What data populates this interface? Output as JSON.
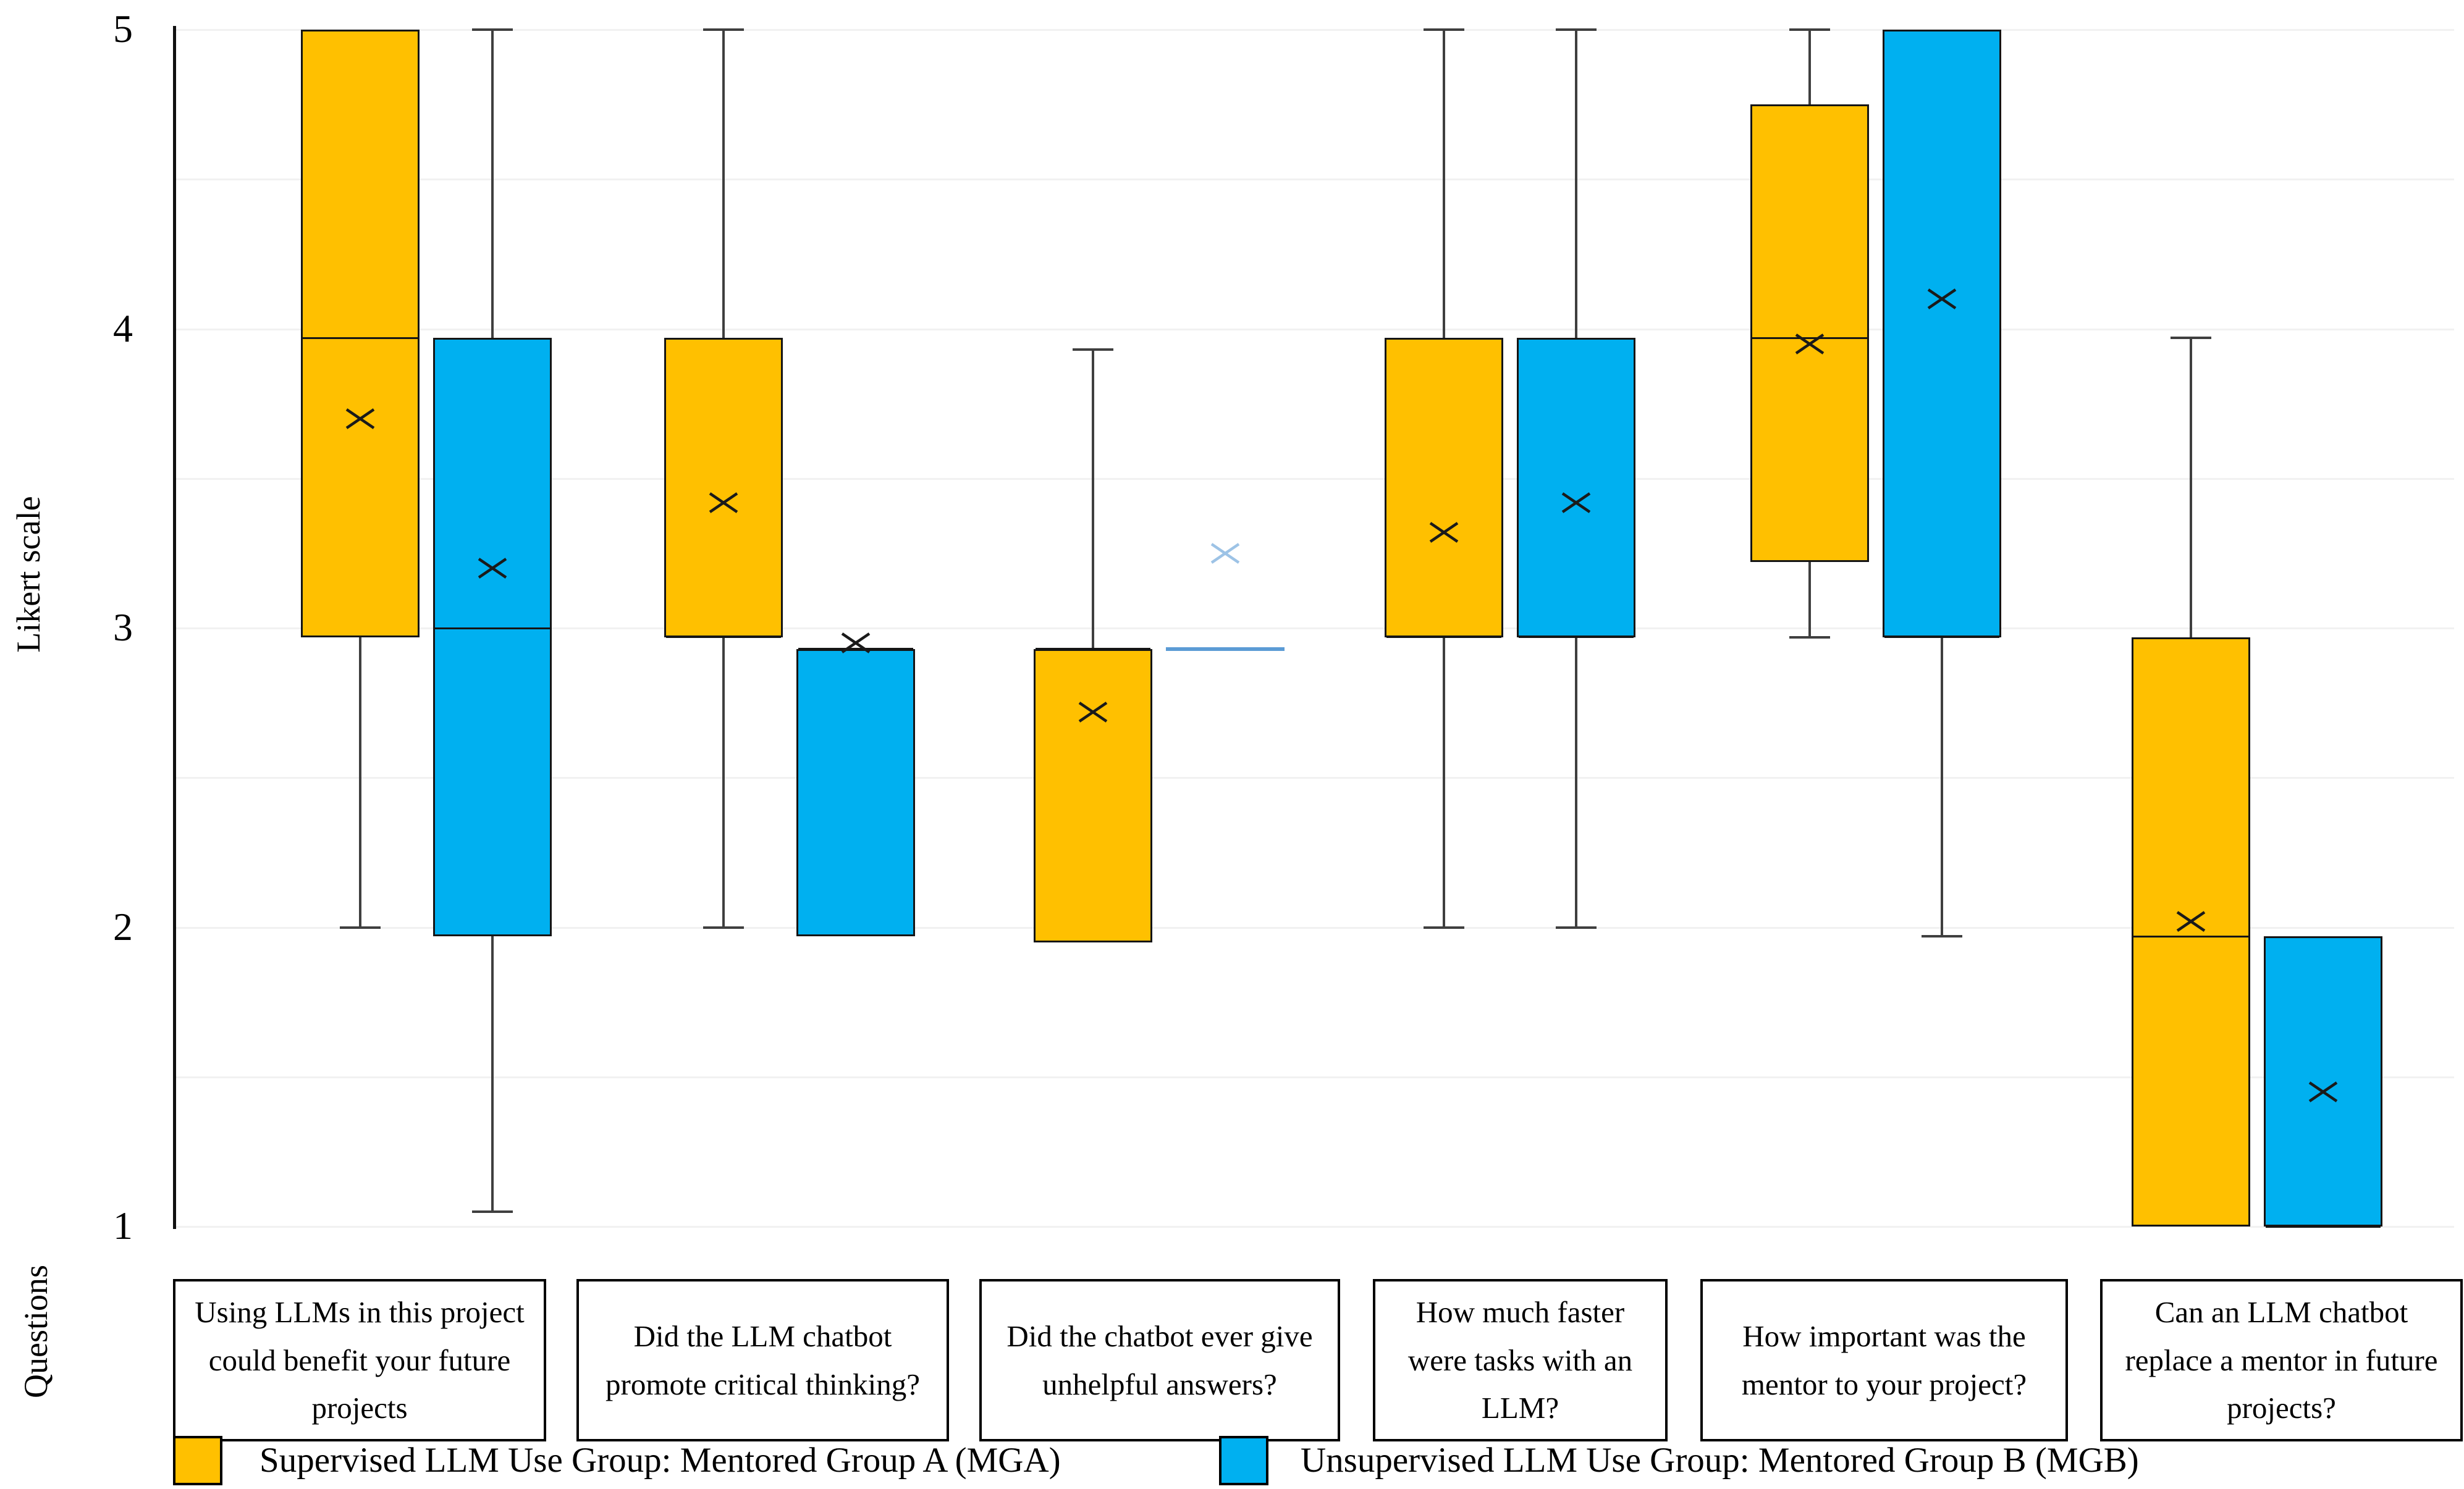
{
  "y_axis": {
    "label": "Likert scale",
    "ticks": [
      "5",
      "4",
      "3",
      "2",
      "1"
    ]
  },
  "x_axis": {
    "label": "Questions"
  },
  "legend": [
    {
      "label": "Supervised LLM Use Group: Mentored Group A (MGA)",
      "color": "#FFC000"
    },
    {
      "label": "Unsupervised LLM Use Group: Mentored Group B (MGB)",
      "color": "#00B0F0"
    }
  ],
  "chart_data": {
    "type": "boxplot",
    "title": "",
    "xlabel": "Questions",
    "ylabel": "Likert scale",
    "ylim": [
      1,
      5
    ],
    "grid": "faint horizontal gridlines every 0.5 Likert units",
    "legend_position": "bottom",
    "mean_marker": "x",
    "categories": [
      "Using LLMs in this project could benefit your future projects",
      "Did the LLM chatbot promote critical thinking?",
      "Did the chatbot ever give unhelpful answers?",
      "How much faster were tasks with an LLM?",
      "How important was the mentor to your project?",
      "Can an LLM chatbot replace a mentor in future projects?"
    ],
    "series": [
      {
        "name": "Supervised LLM Use Group: Mentored Group A (MGA)",
        "short_name": "MGA",
        "color": "#FFC000",
        "points": [
          {
            "min": 2.0,
            "q1": 2.97,
            "median": 3.97,
            "q3": 5.0,
            "max": 5.0,
            "mean": 3.7
          },
          {
            "min": 2.0,
            "q1": 2.97,
            "median": 2.97,
            "q3": 3.97,
            "max": 5.0,
            "mean": 3.42
          },
          {
            "min": 1.95,
            "q1": 1.95,
            "median": 2.93,
            "q3": 2.93,
            "max": 3.93,
            "mean": 2.72
          },
          {
            "min": 2.0,
            "q1": 2.97,
            "median": 2.97,
            "q3": 3.97,
            "max": 5.0,
            "mean": 3.32
          },
          {
            "min": 2.97,
            "q1": 3.22,
            "median": 3.97,
            "q3": 4.75,
            "max": 5.0,
            "mean": 3.95
          },
          {
            "min": 1.0,
            "q1": 1.0,
            "median": 1.97,
            "q3": 2.97,
            "max": 3.97,
            "mean": 2.02
          }
        ]
      },
      {
        "name": "Unsupervised LLM Use Group: Mentored Group B (MGB)",
        "short_name": "MGB",
        "color": "#00B0F0",
        "points": [
          {
            "min": 1.05,
            "q1": 1.97,
            "median": 3.0,
            "q3": 3.97,
            "max": 5.0,
            "mean": 3.2
          },
          {
            "min": 1.97,
            "q1": 1.97,
            "median": 2.93,
            "q3": 2.93,
            "max": 2.93,
            "mean": 2.95
          },
          {
            "min": 2.93,
            "q1": 2.93,
            "median": 2.93,
            "q3": 2.93,
            "max": 2.93,
            "mean": 3.25,
            "flat_line": true,
            "line_color": "#5B9BD5",
            "mean_color": "#9DC3E6"
          },
          {
            "min": 2.0,
            "q1": 2.97,
            "median": 2.97,
            "q3": 3.97,
            "max": 5.0,
            "mean": 3.42
          },
          {
            "min": 1.97,
            "q1": 2.97,
            "median": 2.97,
            "q3": 5.0,
            "max": 5.0,
            "mean": 4.1
          },
          {
            "min": 1.0,
            "q1": 1.0,
            "median": 1.0,
            "q3": 1.97,
            "max": 1.97,
            "mean": 1.45
          }
        ]
      }
    ]
  }
}
